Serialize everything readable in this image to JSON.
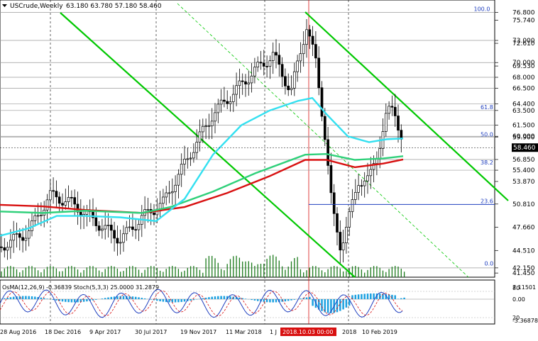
{
  "header": {
    "symbol": "USCrude,Weekly",
    "ohlc": "63.180 63.780 57.180 58.460"
  },
  "colors": {
    "background": "#ffffff",
    "candle": "#000000",
    "volume": "#1a7a1a",
    "channel": "#00c800",
    "ma_cyan": "#33e0f0",
    "ma_green": "#2fd07a",
    "ma_red": "#d81010",
    "fib": "#1f3fbf",
    "osma_hist": "#1aa0e0",
    "stoch_main": "#1f3fbf",
    "stoch_signal": "#d81010",
    "current_price_bg": "#000000"
  },
  "price_scale": {
    "labels": [
      {
        "text": "76.800",
        "v": 76.8,
        "line": true
      },
      {
        "text": "75.740",
        "v": 75.74,
        "line": false
      },
      {
        "text": "73.000",
        "v": 73.0,
        "line": true
      },
      {
        "text": "72.610",
        "v": 72.61,
        "line": false
      },
      {
        "text": "70.000",
        "v": 70.0,
        "line": true
      },
      {
        "text": "69.530",
        "v": 69.53,
        "line": false
      },
      {
        "text": "68.000",
        "v": 68.0,
        "line": true
      },
      {
        "text": "66.500",
        "v": 66.5,
        "line": true
      },
      {
        "text": "64.400",
        "v": 64.4,
        "line": true
      },
      {
        "text": "63.500",
        "v": 63.5,
        "line": true
      },
      {
        "text": "61.500",
        "v": 61.5,
        "line": true
      },
      {
        "text": "60.000",
        "v": 60.0,
        "line": true
      },
      {
        "text": "59.900",
        "v": 59.9,
        "line": true
      },
      {
        "text": "56.850",
        "v": 56.85,
        "line": true
      },
      {
        "text": "55.400",
        "v": 55.4,
        "line": true
      },
      {
        "text": "53.870",
        "v": 53.87,
        "line": false
      },
      {
        "text": "50.810",
        "v": 50.81,
        "line": false
      },
      {
        "text": "47.660",
        "v": 47.66,
        "line": false
      },
      {
        "text": "44.510",
        "v": 44.51,
        "line": false
      },
      {
        "text": "42.150",
        "v": 42.15,
        "line": true
      },
      {
        "text": "41.450",
        "v": 41.45,
        "line": false
      }
    ],
    "current_price": "58.460",
    "current_value": 58.46
  },
  "fibonacci": {
    "levels": [
      {
        "label": "100.0",
        "v": 76.8
      },
      {
        "label": "61.8",
        "v": 63.5
      },
      {
        "label": "50.0",
        "v": 59.8
      },
      {
        "label": "38.2",
        "v": 56.0
      },
      {
        "label": "23.6",
        "v": 50.75
      },
      {
        "label": "0.0",
        "v": 42.3
      }
    ]
  },
  "indicators": {
    "label": "OsMA(12,26,9) -0.36839  Stoch(5,3,3) 25.0000 31.2879",
    "scale": [
      "80",
      "7.11501",
      "0.00",
      "20",
      "-3.36878"
    ]
  },
  "time_axis": {
    "labels": [
      "28 Aug 2016",
      "18 Dec 2016",
      "9 Apr 2017",
      "30 Jul 2017",
      "19 Nov 2017",
      "11 Mar 2018",
      "1 J",
      "2018",
      "10 Feb 2019"
    ],
    "highlighted": "2018.10.03 00:00"
  },
  "menu_icon": "dropdown-triangle-icon"
}
